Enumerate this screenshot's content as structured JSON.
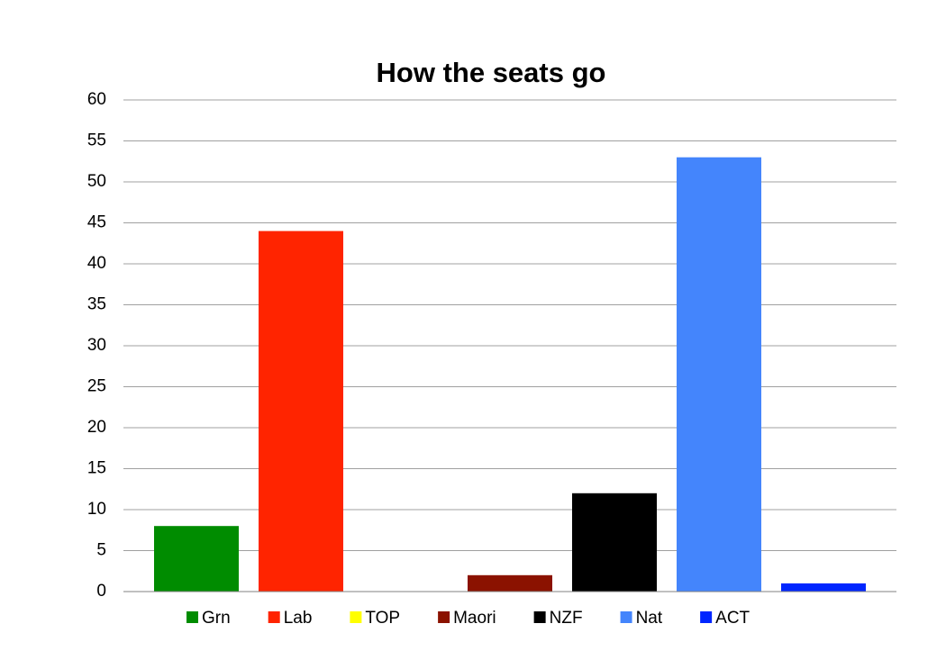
{
  "chart_data": {
    "type": "bar",
    "title": "How the seats go",
    "series": [
      {
        "name": "Grn",
        "color": "#008c00",
        "values": [
          8
        ]
      },
      {
        "name": "Lab",
        "color": "#ff2400",
        "values": [
          44
        ]
      },
      {
        "name": "TOP",
        "color": "#ffff00",
        "values": [
          0
        ]
      },
      {
        "name": "Maori",
        "color": "#8b1200",
        "values": [
          2
        ]
      },
      {
        "name": "NZF",
        "color": "#000000",
        "values": [
          12
        ]
      },
      {
        "name": "Nat",
        "color": "#4485fc",
        "values": [
          53
        ]
      },
      {
        "name": "ACT",
        "color": "#0026ff",
        "values": [
          1
        ]
      }
    ],
    "ylim": [
      0,
      60
    ],
    "yticks": [
      0,
      5,
      10,
      15,
      20,
      25,
      30,
      35,
      40,
      45,
      50,
      55,
      60
    ],
    "grid": true,
    "legend": "bottom"
  }
}
